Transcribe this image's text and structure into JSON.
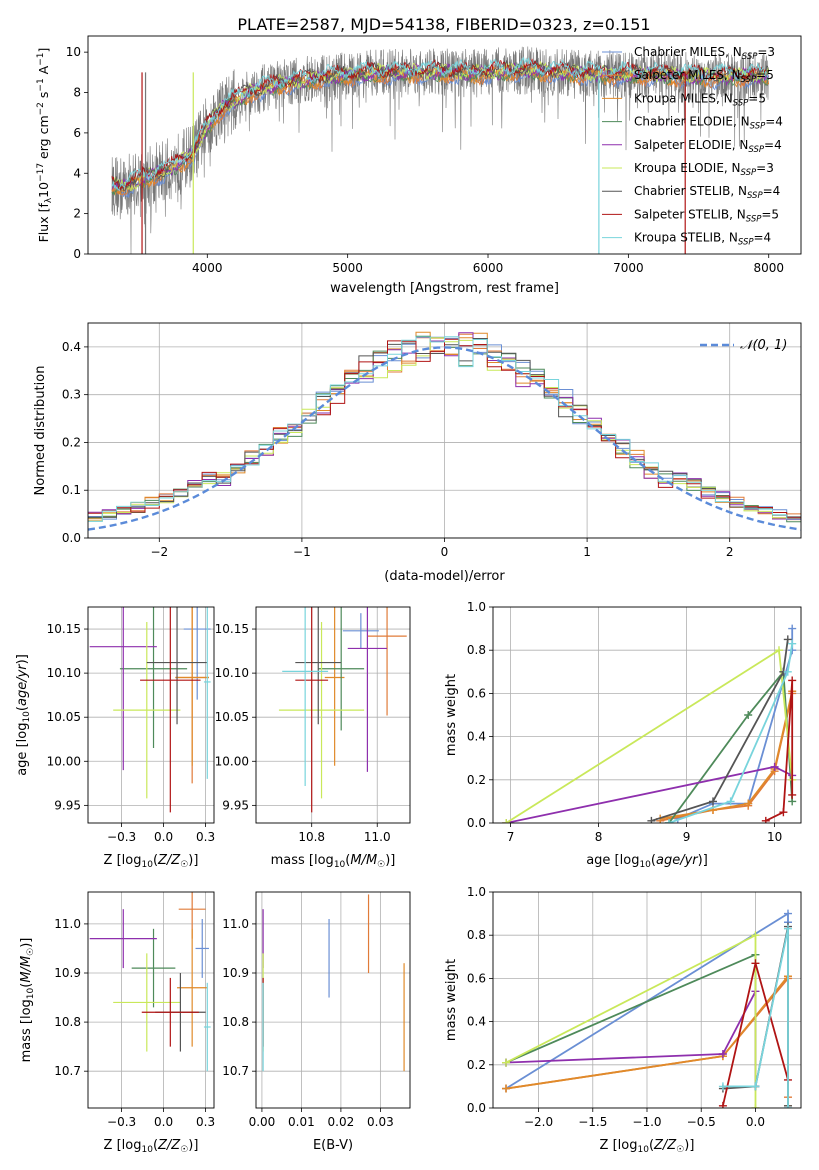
{
  "page_title": "PLATE=2587, MJD=54138, FIBERID=0323, z=0.151",
  "colors": {
    "chabrier_miles": "#6a8fd4",
    "salpeter_miles": "#e07b39",
    "kroupa_miles": "#e08a2a",
    "chabrier_elodie": "#4e8a5a",
    "salpeter_elodie": "#8e2fad",
    "kroupa_elodie": "#c9e85a",
    "chabrier_stelib": "#555555",
    "salpeter_stelib": "#b01414",
    "kroupa_stelib": "#78d4dc",
    "gaussian": "#5b8bd9",
    "data": "#777777"
  },
  "chart_data": [
    {
      "id": "spectrum",
      "type": "line",
      "title": "PLATE=2587, MJD=54138, FIBERID=0323, z=0.151",
      "xlabel": "wavelength [Angstrom, rest frame]",
      "ylabel": "Flux [f_λ 10^-17 erg cm^-2 s^-1 A^-1]",
      "xlim": [
        3150,
        8230
      ],
      "ylim": [
        0,
        10.8
      ],
      "xticks": [
        4000,
        5000,
        6000,
        7000,
        8000
      ],
      "yticks": [
        0,
        2,
        4,
        6,
        8,
        10
      ],
      "grid": false,
      "legend_position": "top-right",
      "legend": [
        "Chabrier MILES, N_SSP=3",
        "Salpeter MILES, N_SSP=5",
        "Kroupa MILES, N_SSP=5",
        "Chabrier ELODIE, N_SSP=4",
        "Salpeter ELODIE, N_SSP=4",
        "Kroupa ELODIE, N_SSP=3",
        "Chabrier STELIB, N_SSP=4",
        "Salpeter STELIB, N_SSP=5",
        "Kroupa STELIB, N_SSP=4"
      ],
      "continuum": {
        "x": [
          3320,
          3400,
          3500,
          3600,
          3700,
          3800,
          3900,
          4000,
          4100,
          4200,
          4300,
          4500,
          4700,
          4900,
          5100,
          5300,
          5500,
          5700,
          5900,
          6100,
          6300,
          6500,
          6700,
          6900,
          7100,
          7300,
          7500,
          7700,
          7900,
          8000
        ],
        "y": [
          3.4,
          3.3,
          3.6,
          3.9,
          4.1,
          4.5,
          5.0,
          6.3,
          7.2,
          7.6,
          8.0,
          8.4,
          8.6,
          8.8,
          8.9,
          9.0,
          9.0,
          9.0,
          8.95,
          9.05,
          9.1,
          9.0,
          8.95,
          8.9,
          8.9,
          8.85,
          8.8,
          8.8,
          8.85,
          8.8
        ]
      }
    },
    {
      "id": "residuals",
      "type": "histogram",
      "xlabel": "(data-model)/error",
      "ylabel": "Normed distribution",
      "xlim": [
        -2.5,
        2.5
      ],
      "ylim": [
        0,
        0.45
      ],
      "xticks": [
        -2,
        -1,
        0,
        1,
        2
      ],
      "yticks": [
        0.0,
        0.1,
        0.2,
        0.3,
        0.4
      ],
      "grid": true,
      "legend_position": "top-right",
      "legend": [
        "𝒩(0, 1)"
      ],
      "bin_width": 0.1,
      "bin_start": -2.5
    },
    {
      "id": "age_vs_Z",
      "type": "errorbar",
      "xlabel": "Z [log10(Z/Z☉)]",
      "ylabel": "age  [log10(age/yr)]",
      "xlim": [
        -0.45,
        0.3
      ],
      "ylim": [
        9.93,
        10.175
      ],
      "xticks": [
        -0.25,
        0.0,
        0.25
      ],
      "yticks": [
        9.95,
        10.0,
        10.05,
        10.1,
        10.15
      ],
      "grid": true,
      "points": [
        {
          "x": 0.2,
          "y": 10.15,
          "xerr": 0.08,
          "yerr": 0.08,
          "series": "chabrier_miles"
        },
        {
          "x": 0.17,
          "y": 10.095,
          "xerr": 0.1,
          "yerr": 0.12,
          "series": "salpeter_miles"
        },
        {
          "x": 0.17,
          "y": 10.095,
          "xerr": 0.1,
          "yerr": 0.1,
          "series": "kroupa_miles"
        },
        {
          "x": -0.06,
          "y": 10.105,
          "xerr": 0.2,
          "yerr": 0.09,
          "series": "chabrier_elodie"
        },
        {
          "x": -0.24,
          "y": 10.13,
          "xerr": 0.2,
          "yerr": 0.14,
          "series": "salpeter_elodie"
        },
        {
          "x": -0.1,
          "y": 10.058,
          "xerr": 0.2,
          "yerr": 0.1,
          "series": "kroupa_elodie"
        },
        {
          "x": 0.08,
          "y": 10.112,
          "xerr": 0.18,
          "yerr": 0.07,
          "series": "chabrier_stelib"
        },
        {
          "x": 0.04,
          "y": 10.092,
          "xerr": 0.18,
          "yerr": 0.15,
          "series": "salpeter_stelib"
        },
        {
          "x": 0.26,
          "y": 10.09,
          "xerr": 0.02,
          "yerr": 0.11,
          "series": "kroupa_stelib"
        }
      ]
    },
    {
      "id": "age_vs_mass",
      "type": "errorbar",
      "xlabel": "mass [log10(M/M☉)]",
      "ylabel": "",
      "xlim": [
        10.63,
        11.1
      ],
      "ylim": [
        9.93,
        10.175
      ],
      "xticks": [
        10.8,
        11.0
      ],
      "yticks": [
        9.95,
        10.0,
        10.05,
        10.1,
        10.15
      ],
      "grid": true,
      "points": [
        {
          "x": 10.95,
          "y": 10.148,
          "xerr": 0.055,
          "yerr": 0.02,
          "series": "chabrier_miles"
        },
        {
          "x": 11.03,
          "y": 10.142,
          "xerr": 0.06,
          "yerr": 0.09,
          "series": "salpeter_miles"
        },
        {
          "x": 10.87,
          "y": 10.095,
          "xerr": 0.03,
          "yerr": 0.1,
          "series": "kroupa_miles"
        },
        {
          "x": 10.89,
          "y": 10.105,
          "xerr": 0.07,
          "yerr": 0.07,
          "series": "chabrier_elodie"
        },
        {
          "x": 10.97,
          "y": 10.128,
          "xerr": 0.06,
          "yerr": 0.14,
          "series": "salpeter_elodie"
        },
        {
          "x": 10.83,
          "y": 10.058,
          "xerr": 0.13,
          "yerr": 0.1,
          "series": "kroupa_elodie"
        },
        {
          "x": 10.82,
          "y": 10.112,
          "xerr": 0.07,
          "yerr": 0.07,
          "series": "chabrier_stelib"
        },
        {
          "x": 10.8,
          "y": 10.092,
          "xerr": 0.05,
          "yerr": 0.15,
          "series": "salpeter_stelib"
        },
        {
          "x": 10.78,
          "y": 10.102,
          "xerr": 0.07,
          "yerr": 0.13,
          "series": "kroupa_stelib"
        }
      ]
    },
    {
      "id": "mass_weight_vs_age",
      "type": "line",
      "xlabel": "age  [log10(age/yr)]",
      "ylabel": "mass weight",
      "xlim": [
        6.8,
        10.3
      ],
      "ylim": [
        0,
        1.0
      ],
      "xticks": [
        7,
        8,
        9,
        10
      ],
      "yticks": [
        0.0,
        0.2,
        0.4,
        0.6,
        0.8,
        1.0
      ],
      "grid": true,
      "series": [
        {
          "series": "chabrier_miles",
          "x": [
            8.9,
            9.3,
            9.7,
            10.2,
            10.2
          ],
          "y": [
            0.02,
            0.09,
            0.09,
            0.8,
            0.9
          ]
        },
        {
          "series": "salpeter_miles",
          "x": [
            8.7,
            9.3,
            9.7,
            10.0,
            10.2
          ],
          "y": [
            0.01,
            0.06,
            0.08,
            0.24,
            0.6
          ]
        },
        {
          "series": "kroupa_miles",
          "x": [
            8.7,
            9.3,
            9.7,
            10.0,
            10.2
          ],
          "y": [
            0.02,
            0.06,
            0.09,
            0.25,
            0.61
          ]
        },
        {
          "series": "chabrier_elodie",
          "x": [
            8.8,
            9.7,
            10.1,
            10.2
          ],
          "y": [
            0.0,
            0.5,
            0.7,
            0.1
          ]
        },
        {
          "series": "salpeter_elodie",
          "x": [
            6.95,
            10.0,
            10.2
          ],
          "y": [
            0.0,
            0.26,
            0.22
          ]
        },
        {
          "series": "kroupa_elodie",
          "x": [
            6.95,
            10.05,
            10.2
          ],
          "y": [
            0.0,
            0.8,
            0.2
          ]
        },
        {
          "series": "chabrier_stelib",
          "x": [
            8.6,
            9.3,
            10.1,
            10.15
          ],
          "y": [
            0.01,
            0.1,
            0.7,
            0.85
          ]
        },
        {
          "series": "salpeter_stelib",
          "x": [
            9.9,
            10.1,
            10.2,
            10.2
          ],
          "y": [
            0.01,
            0.05,
            0.66,
            0.13
          ]
        },
        {
          "series": "kroupa_stelib",
          "x": [
            8.8,
            9.5,
            10.15,
            10.2
          ],
          "y": [
            0.0,
            0.1,
            0.7,
            0.83
          ]
        }
      ]
    },
    {
      "id": "mass_vs_Z",
      "type": "errorbar",
      "xlabel": "Z [log10(Z/Z☉)]",
      "ylabel": "mass [log10(M/M☉)]",
      "xlim": [
        -0.45,
        0.3
      ],
      "ylim": [
        10.625,
        11.065
      ],
      "xticks": [
        -0.25,
        0.0,
        0.25
      ],
      "yticks": [
        10.7,
        10.8,
        10.9,
        11.0
      ],
      "grid": true,
      "points": [
        {
          "x": 0.23,
          "y": 10.95,
          "xerr": 0.04,
          "yerr": 0.06,
          "series": "chabrier_miles"
        },
        {
          "x": 0.17,
          "y": 11.03,
          "xerr": 0.08,
          "yerr": 0.06,
          "series": "salpeter_miles"
        },
        {
          "x": 0.17,
          "y": 10.87,
          "xerr": 0.09,
          "yerr": 0.12,
          "series": "kroupa_miles"
        },
        {
          "x": -0.06,
          "y": 10.91,
          "xerr": 0.13,
          "yerr": 0.08,
          "series": "chabrier_elodie"
        },
        {
          "x": -0.24,
          "y": 10.97,
          "xerr": 0.2,
          "yerr": 0.06,
          "series": "salpeter_elodie"
        },
        {
          "x": -0.1,
          "y": 10.84,
          "xerr": 0.2,
          "yerr": 0.1,
          "series": "kroupa_elodie"
        },
        {
          "x": 0.1,
          "y": 10.82,
          "xerr": 0.15,
          "yerr": 0.08,
          "series": "chabrier_stelib"
        },
        {
          "x": 0.04,
          "y": 10.82,
          "xerr": 0.17,
          "yerr": 0.07,
          "series": "salpeter_stelib"
        },
        {
          "x": 0.26,
          "y": 10.79,
          "xerr": 0.02,
          "yerr": 0.09,
          "series": "kroupa_stelib"
        }
      ]
    },
    {
      "id": "mass_vs_ebv",
      "type": "errorbar",
      "xlabel": "E(B-V)",
      "ylabel": "",
      "xlim": [
        -0.0015,
        0.0375
      ],
      "ylim": [
        10.625,
        11.065
      ],
      "xticks": [
        0.0,
        0.01,
        0.02,
        0.03
      ],
      "yticks": [
        10.7,
        10.8,
        10.9,
        11.0
      ],
      "grid": true,
      "points": [
        {
          "x": 0.017,
          "y": 10.93,
          "xerr": 0,
          "yerr": 0.08,
          "series": "chabrier_miles"
        },
        {
          "x": 0.036,
          "y": 10.81,
          "xerr": 0,
          "yerr": 0.11,
          "series": "kroupa_miles"
        },
        {
          "x": 0.027,
          "y": 10.98,
          "xerr": 0,
          "yerr": 0.08,
          "series": "salpeter_miles"
        },
        {
          "x": 0.0003,
          "y": 10.97,
          "xerr": 0,
          "yerr": 0.06,
          "series": "salpeter_elodie"
        },
        {
          "x": 0.0003,
          "y": 10.84,
          "xerr": 0,
          "yerr": 0.1,
          "series": "kroupa_elodie"
        },
        {
          "x": 0.0003,
          "y": 10.82,
          "xerr": 0,
          "yerr": 0.07,
          "series": "salpeter_stelib"
        },
        {
          "x": 0.0003,
          "y": 10.79,
          "xerr": 0,
          "yerr": 0.09,
          "series": "kroupa_stelib"
        }
      ]
    },
    {
      "id": "mass_weight_vs_Z",
      "type": "line",
      "xlabel": "Z [log10(Z/Z☉)]",
      "ylabel": "mass weight",
      "xlim": [
        -2.42,
        0.42
      ],
      "ylim": [
        0,
        1.0
      ],
      "xticks": [
        -2.0,
        -1.5,
        -1.0,
        -0.5,
        0.0
      ],
      "yticks": [
        0.0,
        0.2,
        0.4,
        0.6,
        0.8,
        1.0
      ],
      "grid": true,
      "series": [
        {
          "series": "chabrier_miles",
          "x": [
            -2.3,
            0.3,
            0.3
          ],
          "y": [
            0.09,
            0.9,
            0.86
          ]
        },
        {
          "series": "salpeter_miles",
          "x": [
            -2.3,
            -0.3,
            0.3,
            0.3
          ],
          "y": [
            0.09,
            0.24,
            0.6,
            0.05
          ]
        },
        {
          "series": "kroupa_miles",
          "x": [
            -2.3,
            -0.3,
            0.3,
            0.3
          ],
          "y": [
            0.09,
            0.24,
            0.61,
            0.01
          ]
        },
        {
          "series": "chabrier_elodie",
          "x": [
            -2.3,
            0.0,
            0.0
          ],
          "y": [
            0.21,
            0.71,
            0.1
          ]
        },
        {
          "series": "salpeter_elodie",
          "x": [
            -2.3,
            -0.3,
            0.0,
            0.0
          ],
          "y": [
            0.21,
            0.25,
            0.54,
            0.1
          ]
        },
        {
          "series": "kroupa_elodie",
          "x": [
            -2.3,
            0.0,
            0.0
          ],
          "y": [
            0.21,
            0.8,
            0.0
          ]
        },
        {
          "series": "chabrier_stelib",
          "x": [
            -0.3,
            0.0,
            0.3,
            0.3
          ],
          "y": [
            0.09,
            0.1,
            0.84,
            0.01
          ]
        },
        {
          "series": "salpeter_stelib",
          "x": [
            -0.3,
            0.0,
            0.3
          ],
          "y": [
            0.01,
            0.67,
            0.13
          ]
        },
        {
          "series": "kroupa_stelib",
          "x": [
            -0.3,
            0.0,
            0.3,
            0.3
          ],
          "y": [
            0.1,
            0.1,
            0.83,
            0.0
          ]
        }
      ]
    }
  ]
}
